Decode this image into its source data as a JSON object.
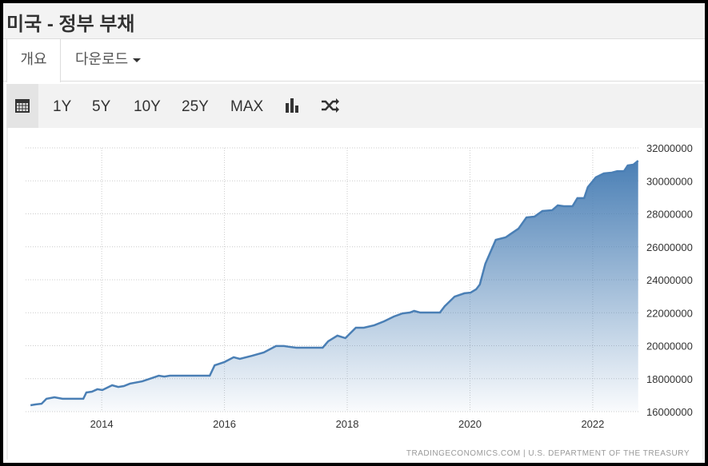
{
  "header": {
    "title": "미국 - 정부 부채"
  },
  "tabs": [
    "개요",
    "다운로드"
  ],
  "toolbar": [
    "1Y",
    "5Y",
    "10Y",
    "25Y",
    "MAX"
  ],
  "chart_data": {
    "type": "area",
    "source": "TRADINGECONOMICS.COM | U.S. DEPARTMENT OF THE TREASURY",
    "color": "#4a7fb5",
    "x": [
      2012.84,
      2012.93,
      2013.02,
      2013.1,
      2013.23,
      2013.36,
      2013.7,
      2013.75,
      2013.84,
      2013.93,
      2014.01,
      2014.17,
      2014.27,
      2014.36,
      2014.46,
      2014.66,
      2014.82,
      2014.93,
      2015.02,
      2015.11,
      2015.76,
      2015.84,
      2016.0,
      2016.15,
      2016.25,
      2016.45,
      2016.64,
      2016.84,
      2016.97,
      2017.06,
      2017.17,
      2017.6,
      2017.69,
      2017.84,
      2017.97,
      2018.14,
      2018.27,
      2018.44,
      2018.6,
      2018.76,
      2018.9,
      2019.02,
      2019.09,
      2019.19,
      2019.51,
      2019.59,
      2019.75,
      2019.91,
      2020.01,
      2020.1,
      2020.16,
      2020.25,
      2020.42,
      2020.58,
      2020.79,
      2020.92,
      2021.05,
      2021.18,
      2021.34,
      2021.43,
      2021.53,
      2021.67,
      2021.75,
      2021.86,
      2021.92,
      2022.05,
      2022.18,
      2022.31,
      2022.4,
      2022.51,
      2022.57,
      2022.66,
      2022.74
    ],
    "values": [
      16390000,
      16440000,
      16480000,
      16780000,
      16870000,
      16780000,
      16780000,
      17160000,
      17210000,
      17360000,
      17310000,
      17600000,
      17500000,
      17550000,
      17700000,
      17840000,
      18040000,
      18180000,
      18130000,
      18180000,
      18180000,
      18810000,
      19010000,
      19300000,
      19200000,
      19390000,
      19590000,
      19980000,
      19980000,
      19930000,
      19880000,
      19880000,
      20270000,
      20610000,
      20460000,
      21090000,
      21090000,
      21240000,
      21480000,
      21770000,
      21960000,
      22010000,
      22110000,
      22010000,
      22010000,
      22400000,
      22980000,
      23180000,
      23220000,
      23420000,
      23710000,
      24970000,
      26420000,
      26570000,
      27100000,
      27780000,
      27830000,
      28170000,
      28220000,
      28510000,
      28460000,
      28460000,
      28950000,
      28950000,
      29620000,
      30210000,
      30450000,
      30500000,
      30590000,
      30590000,
      30930000,
      30980000,
      31220000
    ],
    "xlim": [
      2012.76,
      2022.77
    ],
    "xticks": [
      2014,
      2016,
      2018,
      2020,
      2022
    ],
    "ylim": [
      16000000,
      32000000
    ],
    "yticks": [
      16000000,
      18000000,
      20000000,
      22000000,
      24000000,
      26000000,
      28000000,
      30000000,
      32000000
    ],
    "grid": true
  }
}
